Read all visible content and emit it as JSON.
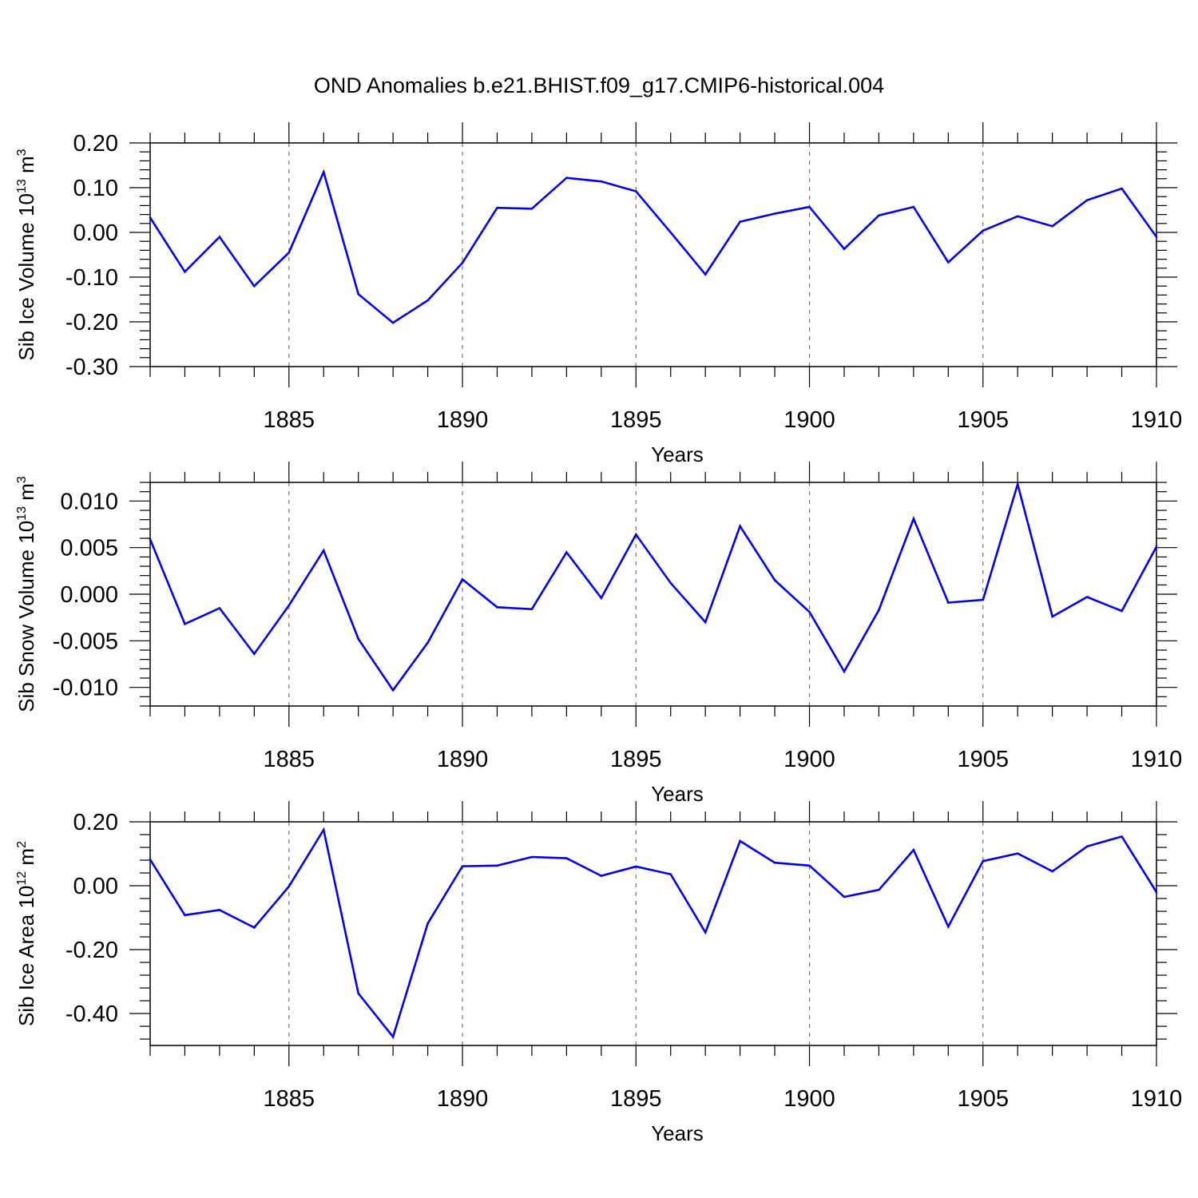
{
  "title": "OND Anomalies b.e21.BHIST.f09_g17.CMIP6-historical.004",
  "colors": {
    "line": "#0000ee",
    "frame": "#000000",
    "grid": "#777777",
    "background": "#ffffff"
  },
  "chart_data": [
    {
      "type": "line",
      "title": "OND Anomalies b.e21.BHIST.f09_g17.CMIP6-historical.004",
      "xlabel": "Years",
      "ylabel": "Sib Ice Volume",
      "yunit_base": "10",
      "yunit_exp": "13",
      "yunit_m": "m",
      "yunit_m_exp": "3",
      "xlim": [
        1881,
        1910
      ],
      "ylim": [
        -0.3,
        0.2
      ],
      "yticks": [
        -0.3,
        -0.2,
        -0.1,
        0.0,
        0.1,
        0.2
      ],
      "ytick_labels": [
        "-0.30",
        "-0.20",
        "-0.10",
        "0.00",
        "0.10",
        "0.20"
      ],
      "xticks": [
        1885,
        1890,
        1895,
        1900,
        1905,
        1910
      ],
      "xtick_labels": [
        "1885",
        "1890",
        "1895",
        "1900",
        "1905",
        "1910"
      ],
      "grid": "vertical dashed at labeled years",
      "x": [
        1881,
        1882,
        1883,
        1884,
        1885,
        1886,
        1887,
        1888,
        1889,
        1890,
        1891,
        1892,
        1893,
        1894,
        1895,
        1896,
        1897,
        1898,
        1899,
        1900,
        1901,
        1902,
        1903,
        1904,
        1905,
        1906,
        1907,
        1908,
        1909,
        1910
      ],
      "series": [
        {
          "name": "Sib Ice Volume",
          "values": [
            0.033,
            -0.088,
            -0.01,
            -0.12,
            -0.045,
            0.135,
            -0.138,
            -0.202,
            -0.152,
            -0.068,
            0.055,
            0.053,
            0.122,
            0.114,
            0.092,
            0.0,
            -0.094,
            0.024,
            0.042,
            0.057,
            -0.037,
            0.038,
            0.057,
            -0.067,
            0.004,
            0.036,
            0.014,
            0.072,
            0.098,
            -0.01
          ]
        }
      ]
    },
    {
      "type": "line",
      "xlabel": "Years",
      "ylabel": "Sib Snow Volume",
      "yunit_base": "10",
      "yunit_exp": "13",
      "yunit_m": "m",
      "yunit_m_exp": "3",
      "xlim": [
        1881,
        1910
      ],
      "ylim": [
        -0.012,
        0.012
      ],
      "yticks": [
        -0.01,
        -0.005,
        0.0,
        0.005,
        0.01
      ],
      "ytick_labels": [
        "-0.010",
        "-0.005",
        "0.000",
        "0.005",
        "0.010"
      ],
      "xticks": [
        1885,
        1890,
        1895,
        1900,
        1905,
        1910
      ],
      "xtick_labels": [
        "1885",
        "1890",
        "1895",
        "1900",
        "1905",
        "1910"
      ],
      "grid": "vertical dashed at labeled years",
      "x": [
        1881,
        1882,
        1883,
        1884,
        1885,
        1886,
        1887,
        1888,
        1889,
        1890,
        1891,
        1892,
        1893,
        1894,
        1895,
        1896,
        1897,
        1898,
        1899,
        1900,
        1901,
        1902,
        1903,
        1904,
        1905,
        1906,
        1907,
        1908,
        1909,
        1910
      ],
      "series": [
        {
          "name": "Sib Snow Volume",
          "values": [
            0.0059,
            -0.0032,
            -0.0015,
            -0.0064,
            -0.0012,
            0.0047,
            -0.0048,
            -0.0103,
            -0.0052,
            0.0016,
            -0.0014,
            -0.0016,
            0.0045,
            -0.0004,
            0.0064,
            0.0012,
            -0.003,
            0.0073,
            0.0015,
            -0.0019,
            -0.0083,
            -0.0017,
            0.0081,
            -0.0009,
            -0.0006,
            0.0118,
            -0.0024,
            -0.0003,
            -0.0018,
            0.0051
          ]
        }
      ]
    },
    {
      "type": "line",
      "xlabel": "Years",
      "ylabel": "Sib Ice Area",
      "yunit_base": "10",
      "yunit_exp": "12",
      "yunit_m": "m",
      "yunit_m_exp": "2",
      "xlim": [
        1881,
        1910
      ],
      "ylim": [
        -0.5,
        0.2
      ],
      "yticks": [
        -0.4,
        -0.2,
        0.0,
        0.2
      ],
      "ytick_labels": [
        "-0.40",
        "-0.20",
        "0.00",
        "0.20"
      ],
      "xticks": [
        1885,
        1890,
        1895,
        1900,
        1905,
        1910
      ],
      "xtick_labels": [
        "1885",
        "1890",
        "1895",
        "1900",
        "1905",
        "1910"
      ],
      "grid": "vertical dashed at labeled years",
      "x": [
        1881,
        1882,
        1883,
        1884,
        1885,
        1886,
        1887,
        1888,
        1889,
        1890,
        1891,
        1892,
        1893,
        1894,
        1895,
        1896,
        1897,
        1898,
        1899,
        1900,
        1901,
        1902,
        1903,
        1904,
        1905,
        1906,
        1907,
        1908,
        1909,
        1910
      ],
      "series": [
        {
          "name": "Sib Ice Area",
          "values": [
            0.082,
            -0.092,
            -0.076,
            -0.131,
            -0.002,
            0.175,
            -0.337,
            -0.473,
            -0.118,
            0.061,
            0.063,
            0.09,
            0.086,
            0.031,
            0.06,
            0.036,
            -0.146,
            0.14,
            0.072,
            0.063,
            -0.035,
            -0.013,
            0.112,
            -0.128,
            0.077,
            0.101,
            0.045,
            0.123,
            0.154,
            -0.02
          ]
        }
      ]
    }
  ]
}
